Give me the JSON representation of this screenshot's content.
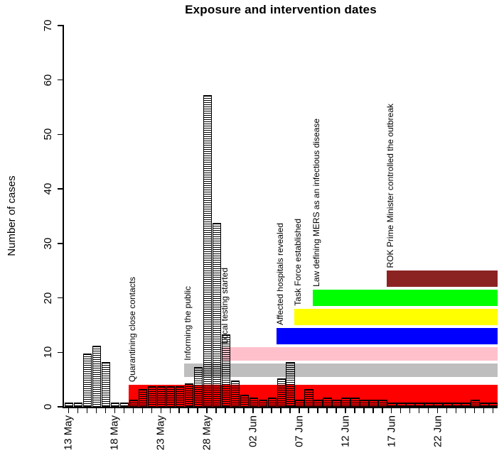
{
  "figure": {
    "background": "#FFFFFF",
    "axis_color": "#000000"
  },
  "chart_data": {
    "type": "bar",
    "title": "Exposure and intervention dates",
    "xlabel": "",
    "ylabel": "Number of cases",
    "ylim": [
      0,
      70
    ],
    "grid": false,
    "legend": "none",
    "y_ticks": [
      0,
      10,
      20,
      30,
      40,
      50,
      60,
      70
    ],
    "x_tick_labels": [
      "13 May",
      "18 May",
      "23 May",
      "28 May",
      "02 Jun",
      "07 Jun",
      "12 Jun",
      "17 Jun",
      "22 Jun"
    ],
    "x_tick_positions": [
      0,
      5,
      10,
      15,
      20,
      25,
      30,
      35,
      40
    ],
    "bar_style": {
      "fill": "horizontal-hatch",
      "color": "#000000"
    },
    "categories": [
      "13 May",
      "14 May",
      "15 May",
      "16 May",
      "17 May",
      "18 May",
      "19 May",
      "20 May",
      "21 May",
      "22 May",
      "23 May",
      "24 May",
      "25 May",
      "26 May",
      "27 May",
      "28 May",
      "29 May",
      "30 May",
      "31 May",
      "01 Jun",
      "02 Jun",
      "03 Jun",
      "04 Jun",
      "05 Jun",
      "06 Jun",
      "07 Jun",
      "08 Jun",
      "09 Jun",
      "10 Jun",
      "11 Jun",
      "12 Jun",
      "13 Jun",
      "14 Jun",
      "15 Jun",
      "16 Jun",
      "17 Jun",
      "18 Jun",
      "19 Jun",
      "20 Jun",
      "21 Jun",
      "22 Jun",
      "23 Jun",
      "24 Jun",
      "25 Jun",
      "26 Jun",
      "27 Jun",
      "28 Jun"
    ],
    "values": [
      0.5,
      0.5,
      9.5,
      11,
      8,
      0.5,
      0.5,
      1,
      3,
      3.5,
      3.5,
      3.5,
      3.5,
      4,
      7,
      57,
      33.5,
      13,
      4.5,
      2,
      1.5,
      1,
      1.5,
      5,
      8,
      1,
      3,
      1,
      1.5,
      1,
      1.5,
      1.5,
      1,
      1,
      1,
      0.5,
      0.5,
      0.5,
      0.5,
      0.5,
      0.5,
      0.5,
      0.5,
      0.5,
      1,
      0.5,
      0.5
    ],
    "interventions": [
      {
        "label": "Quarantining close contacts",
        "start_day": 7,
        "start_date": "20 May",
        "y0": 0,
        "y1": 4,
        "color": "#FF0000"
      },
      {
        "label": "Informing the public",
        "start_day": 13,
        "start_date": "26 May",
        "y0": 5.5,
        "y1": 8,
        "color": "#BEBEBE"
      },
      {
        "label": "Local testing started",
        "start_day": 17,
        "start_date": "30 May",
        "y0": 8.5,
        "y1": 11,
        "color": "#FFC0CB"
      },
      {
        "label": "Affected hospitals revealed",
        "start_day": 23,
        "start_date": "05 Jun",
        "y0": 11.5,
        "y1": 14.5,
        "color": "#0000FF"
      },
      {
        "label": "Task Force established",
        "start_day": 25,
        "start_date": "07 Jun",
        "y0": 15,
        "y1": 18,
        "color": "#FFFF00"
      },
      {
        "label": "Law defining MERS as an infectious disease",
        "start_day": 27,
        "start_date": "09 Jun",
        "y0": 18.5,
        "y1": 21.5,
        "color": "#00FF00"
      },
      {
        "label": "ROK Prime Minister controlled the outbreak",
        "start_day": 35,
        "start_date": "17 Jun",
        "y0": 22,
        "y1": 25,
        "color": "#8B2323"
      }
    ]
  }
}
